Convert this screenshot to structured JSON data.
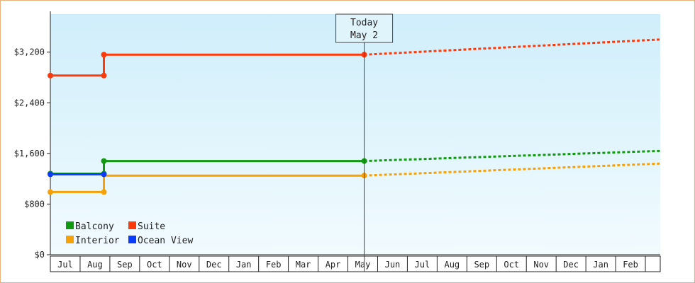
{
  "chart_data": {
    "type": "line",
    "title": "",
    "xlabel": "",
    "ylabel": "",
    "x_tick_labels": [
      "Jul",
      "Aug",
      "Sep",
      "Oct",
      "Nov",
      "Dec",
      "Jan",
      "Feb",
      "Mar",
      "Apr",
      "May",
      "Jun",
      "Jul",
      "Aug",
      "Sep",
      "Oct",
      "Nov",
      "Dec",
      "Jan",
      "Feb"
    ],
    "y_ticks": [
      0,
      800,
      1600,
      2400,
      3200
    ],
    "y_tick_labels": [
      "$0",
      "$800",
      "$1,600",
      "$2,400",
      "$3,200"
    ],
    "ylim": [
      0,
      3800
    ],
    "x_range_months": [
      -0.5,
      20.0
    ],
    "today": {
      "label_line1": "Today",
      "label_line2": "May 2",
      "x_month": 10.05
    },
    "grid": false,
    "legend_placement": "bottom-left",
    "series": [
      {
        "name": "Balcony",
        "color": "#119911",
        "actual": [
          [
            -0.5,
            1280
          ],
          [
            1.3,
            1280
          ],
          [
            1.3,
            1480
          ],
          [
            10.05,
            1480
          ]
        ],
        "projected": [
          [
            10.05,
            1480
          ],
          [
            20.0,
            1640
          ]
        ]
      },
      {
        "name": "Suite",
        "color": "#ff3a0a",
        "actual": [
          [
            -0.5,
            2830
          ],
          [
            1.3,
            2830
          ],
          [
            1.3,
            3160
          ],
          [
            10.05,
            3160
          ]
        ],
        "projected": [
          [
            10.05,
            3160
          ],
          [
            20.0,
            3400
          ]
        ]
      },
      {
        "name": "Interior",
        "color": "#f5a20a",
        "actual": [
          [
            -0.5,
            990
          ],
          [
            1.3,
            990
          ],
          [
            1.3,
            1250
          ],
          [
            10.05,
            1250
          ]
        ],
        "projected": [
          [
            10.05,
            1250
          ],
          [
            20.0,
            1440
          ]
        ]
      },
      {
        "name": "Ocean View",
        "color": "#0a3cff",
        "actual": [
          [
            -0.5,
            1270
          ],
          [
            1.3,
            1270
          ]
        ],
        "projected": []
      }
    ],
    "markers": [
      {
        "series": "Balcony",
        "x": -0.5,
        "y": 1280
      },
      {
        "series": "Balcony",
        "x": 1.3,
        "y": 1280
      },
      {
        "series": "Balcony",
        "x": 1.3,
        "y": 1480
      },
      {
        "series": "Balcony",
        "x": 10.05,
        "y": 1480
      },
      {
        "series": "Suite",
        "x": -0.5,
        "y": 2830
      },
      {
        "series": "Suite",
        "x": 1.3,
        "y": 2830
      },
      {
        "series": "Suite",
        "x": 1.3,
        "y": 3160
      },
      {
        "series": "Suite",
        "x": 10.05,
        "y": 3160
      },
      {
        "series": "Interior",
        "x": -0.5,
        "y": 990
      },
      {
        "series": "Interior",
        "x": 1.3,
        "y": 990
      },
      {
        "series": "Interior",
        "x": 10.05,
        "y": 1250
      },
      {
        "series": "Ocean View",
        "x": -0.5,
        "y": 1270
      },
      {
        "series": "Ocean View",
        "x": 1.3,
        "y": 1270
      }
    ]
  }
}
